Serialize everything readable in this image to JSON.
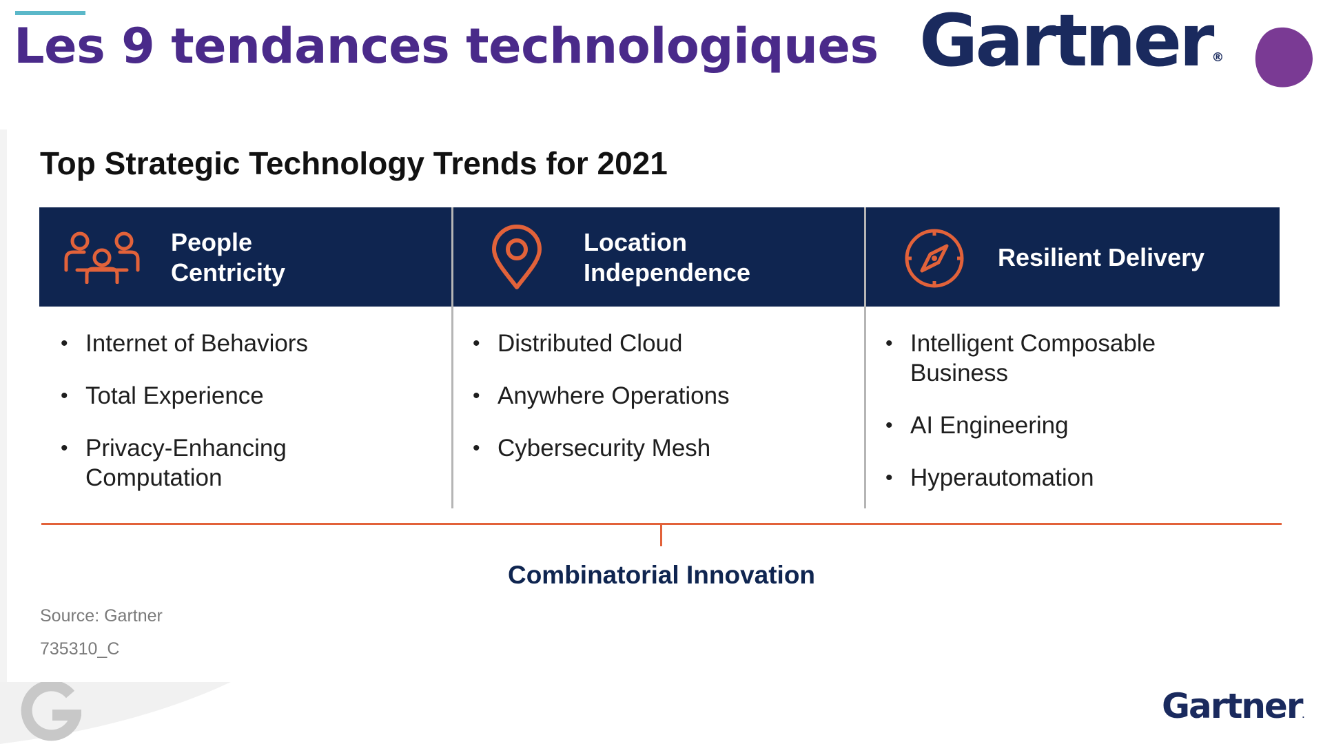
{
  "slide": {
    "title": "Les 9 tendances technologiques"
  },
  "brand": {
    "logo_text": "Gartner",
    "logo_reg": "®",
    "logo_color": "#1a2a5e",
    "title_color": "#4a2a8a",
    "accent_teal": "#5bb8c9",
    "blob_color": "#7a3a94"
  },
  "panel": {
    "title": "Top Strategic Technology Trends for 2021",
    "header_color": "#0f2550",
    "accent_orange": "#e2623a",
    "columns": [
      {
        "icon": "people-icon",
        "heading_line1": "People",
        "heading_line2": "Centricity",
        "items": [
          "Internet of Behaviors",
          "Total Experience",
          "Privacy-Enhancing Computation"
        ]
      },
      {
        "icon": "location-pin-icon",
        "heading_line1": "Location",
        "heading_line2": "Independence",
        "items": [
          "Distributed Cloud",
          "Anywhere Operations",
          "Cybersecurity Mesh"
        ]
      },
      {
        "icon": "compass-icon",
        "heading_line1": "Resilient Delivery",
        "heading_line2": "",
        "items": [
          "Intelligent Composable Business",
          "AI Engineering",
          "Hyperautomation"
        ]
      }
    ],
    "footer_label": "Combinatorial Innovation",
    "source": "Source: Gartner",
    "code": "735310_C"
  }
}
